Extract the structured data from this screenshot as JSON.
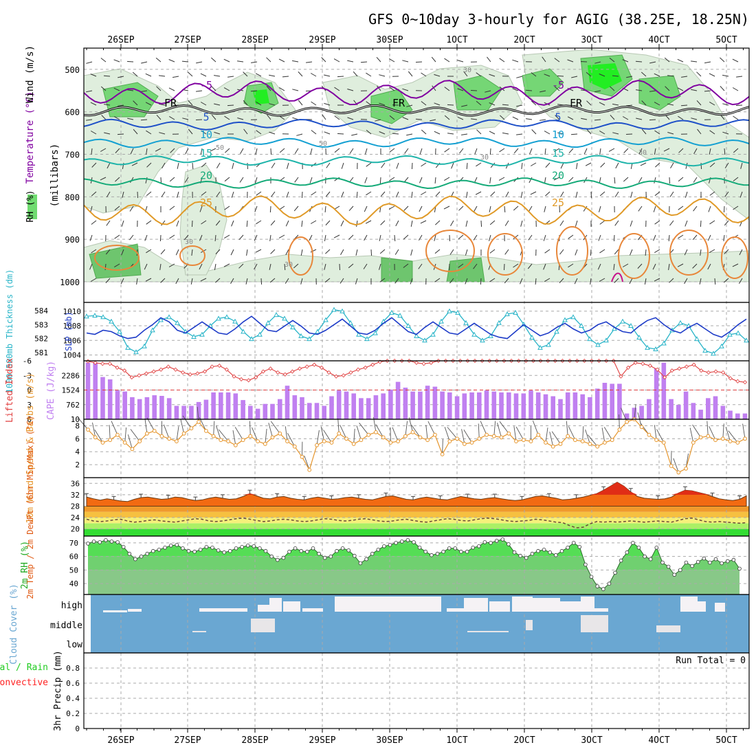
{
  "title": "GFS 0~10day 3-hourly for AGIG (38.25E, 18.25N)",
  "colors": {
    "frame": "#000000",
    "grid": "#aaaaaa",
    "rh_green": "#33cc33",
    "temp_purple": "#8000a0",
    "temp_blue": "#1e50c8",
    "temp_cyan": "#14a0d2",
    "temp_teal": "#1eb4aa",
    "temp_green": "#14aa78",
    "temp_orange": "#e09a28",
    "cape_bar": "#c080f0",
    "lifted_line": "#e03c3c",
    "wind_line": "#e6962d",
    "thick_line": "#1e3cc8",
    "slp_line": "#28b4c8",
    "cloud_blue": "#6aa7d2",
    "cloud_white": "#f5f2f5"
  },
  "chart_data": [
    {
      "panel": "upper_air",
      "type": "contour",
      "title": "",
      "ylabel_parts": [
        "RH (%)",
        "Temperature (°C)",
        "Wind (m/s)"
      ],
      "ylabel_units": "(millibars)",
      "date_labels": [
        "26SEP",
        "27SEP",
        "28SEP",
        "29SEP",
        "30SEP",
        "1OCT",
        "2OCT",
        "3OCT",
        "4OCT",
        "5OCT"
      ],
      "ylim": [
        1000,
        450
      ],
      "yticks": [
        500,
        600,
        700,
        800,
        900,
        1000
      ],
      "temperature_isotherms": [
        {
          "label": "-5",
          "level_mb": 555
        },
        {
          "label": "FR",
          "level_mb": 597
        },
        {
          "label": "5",
          "level_mb": 630
        },
        {
          "label": "10",
          "level_mb": 672
        },
        {
          "label": "15",
          "level_mb": 715
        },
        {
          "label": "20",
          "level_mb": 768
        },
        {
          "label": "25",
          "level_mb": 832
        }
      ],
      "rh_contour_labels": [
        "30",
        "50",
        "70"
      ]
    },
    {
      "panel": "thickness_slp",
      "type": "line",
      "ylabel_left": "1000-500mb Thickness (dm)",
      "ylabel_right": "SLP (mb)",
      "left_ticks": [
        "584",
        "583",
        "582",
        "581"
      ],
      "right_ticks": [
        "1010",
        "1008",
        "1006",
        "1004"
      ],
      "thickness_dm": [
        582.4,
        582.3,
        582.6,
        582.5,
        582.2,
        582.0,
        582.1,
        582.6,
        583.0,
        583.5,
        583.2,
        582.6,
        582.4,
        582.8,
        583.2,
        582.8,
        582.4,
        582.3,
        582.7,
        583.2,
        583.6,
        583.1,
        582.6,
        582.5,
        582.9,
        583.3,
        582.9,
        582.4,
        582.3,
        582.6,
        583.0,
        583.4,
        582.9,
        582.4,
        582.3,
        582.6,
        583.1,
        583.5,
        583.0,
        582.5,
        582.3,
        582.8,
        583.2,
        582.8,
        582.4,
        582.3,
        582.7,
        583.1,
        582.7,
        582.3,
        582.1,
        582.0,
        582.5,
        583.0,
        582.6,
        582.2,
        582.4,
        582.8,
        583.1,
        582.7,
        582.4,
        582.6,
        583.0,
        583.2,
        582.8,
        582.5,
        582.4,
        582.9,
        583.3,
        583.5,
        583.0,
        582.6,
        582.4,
        582.8,
        583.1,
        582.7,
        582.3,
        582.1,
        582.5,
        583.0,
        583.4
      ],
      "slp_mb": [
        1009.3,
        1009.4,
        1009.2,
        1008.6,
        1007.2,
        1005.0,
        1004.4,
        1005.2,
        1007.4,
        1008.8,
        1009.2,
        1008.4,
        1007.2,
        1006.5,
        1006.8,
        1008.0,
        1009.0,
        1009.2,
        1008.6,
        1007.2,
        1006.2,
        1006.8,
        1008.4,
        1009.5,
        1009.0,
        1007.8,
        1006.6,
        1006.2,
        1007.2,
        1008.8,
        1010.2,
        1010.0,
        1008.4,
        1006.8,
        1006.2,
        1007.0,
        1008.6,
        1009.8,
        1009.4,
        1008.0,
        1006.6,
        1006.0,
        1006.8,
        1008.6,
        1010.0,
        1009.8,
        1008.4,
        1006.8,
        1006.0,
        1006.6,
        1008.4,
        1009.6,
        1009.8,
        1008.2,
        1006.4,
        1005.0,
        1005.4,
        1007.2,
        1008.8,
        1009.2,
        1008.0,
        1006.2,
        1005.4,
        1006.0,
        1007.6,
        1008.6,
        1008.0,
        1006.4,
        1005.0,
        1004.8,
        1005.6,
        1007.4,
        1008.4,
        1008.0,
        1006.2,
        1004.6,
        1004.2,
        1005.2,
        1006.8,
        1007.0,
        1006.0
      ],
      "ylim_thickness": [
        580.4,
        584.6
      ],
      "ylim_slp": [
        1003.2,
        1011.2
      ]
    },
    {
      "panel": "stability",
      "type": "bar",
      "ylabel_left": "Lifted Index",
      "ylabel_right": "CAPE (J/kg)",
      "left_ticks": [
        "-6",
        "-3",
        "0",
        "3",
        "6"
      ],
      "right_ticks": [
        "2286",
        "1524",
        "762",
        "10"
      ],
      "cape_jkg": [
        2950,
        2950,
        2200,
        2080,
        1500,
        1450,
        1150,
        1050,
        1150,
        1250,
        1220,
        1100,
        700,
        700,
        700,
        900,
        1020,
        1400,
        1400,
        1400,
        1350,
        1000,
        700,
        550,
        800,
        800,
        1050,
        1750,
        1250,
        1150,
        850,
        850,
        700,
        1200,
        1500,
        1450,
        1350,
        1100,
        1100,
        1250,
        1350,
        1550,
        1950,
        1650,
        1450,
        1450,
        1750,
        1700,
        1450,
        1400,
        1200,
        1350,
        1400,
        1400,
        1500,
        1450,
        1400,
        1400,
        1350,
        1350,
        1500,
        1400,
        1300,
        1200,
        1050,
        1400,
        1400,
        1300,
        1150,
        1600,
        1900,
        1850,
        1850,
        300,
        600,
        700,
        1050,
        2650,
        2950,
        1050,
        750,
        1450,
        850,
        500,
        1100,
        1200,
        700,
        450,
        300,
        300
      ],
      "lifted_index": [
        -5.9,
        -5.6,
        -5.4,
        -5.4,
        -4.6,
        -4.0,
        -2.6,
        -3.0,
        -3.4,
        -3.8,
        -4.2,
        -4.8,
        -4.2,
        -3.6,
        -3.2,
        -3.4,
        -3.8,
        -4.8,
        -5.0,
        -4.2,
        -2.8,
        -2.2,
        -2.0,
        -2.6,
        -3.8,
        -4.4,
        -3.6,
        -3.2,
        -3.8,
        -4.4,
        -4.8,
        -5.2,
        -4.6,
        -3.6,
        -2.8,
        -3.0,
        -3.6,
        -4.2,
        -4.6,
        -5.2,
        -5.8,
        -6.0,
        -6.0,
        -6.0,
        -6.0,
        -5.6,
        -5.4,
        -5.6,
        -6.0,
        -6.0,
        -6.0,
        -6.0,
        -6.0,
        -6.0,
        -6.0,
        -6.0,
        -6.0,
        -6.0,
        -6.0,
        -6.0,
        -6.0,
        -6.0,
        -6.0,
        -6.0,
        -6.0,
        -6.0,
        -6.0,
        -6.0,
        -6.0,
        -6.0,
        -6.0,
        -6.0,
        -6.0,
        -2.8,
        -4.6,
        -5.6,
        -5.4,
        -5.0,
        -4.2,
        -2.6,
        -4.0,
        -4.4,
        -4.8,
        -5.2,
        -4.0,
        -3.6,
        -3.8,
        -3.6,
        -2.4,
        -1.8,
        -1.6
      ],
      "lifted_index_zero_line": 0
    },
    {
      "panel": "wind10m",
      "type": "line",
      "ylabel": "10m Wind Speed & Barbs (m/s)",
      "yticks": [
        2,
        4,
        6,
        8
      ],
      "ylim": [
        0,
        9
      ],
      "wind_speed_ms": [
        7.4,
        6.2,
        5.4,
        5.8,
        6.6,
        5.4,
        4.4,
        5.6,
        6.8,
        7.2,
        6.4,
        6.0,
        5.6,
        6.8,
        7.6,
        8.6,
        7.2,
        6.4,
        5.8,
        5.6,
        5.0,
        5.8,
        6.4,
        5.6,
        5.2,
        6.2,
        6.8,
        5.6,
        4.8,
        3.2,
        1.2,
        5.0,
        5.6,
        5.4,
        6.8,
        6.0,
        5.2,
        5.8,
        6.6,
        7.0,
        6.2,
        5.4,
        5.6,
        6.4,
        7.0,
        6.2,
        5.8,
        6.6,
        3.6,
        5.6,
        6.0,
        5.2,
        5.4,
        6.0,
        6.6,
        6.4,
        6.2,
        6.8,
        5.6,
        5.8,
        5.6,
        6.6,
        5.4,
        4.8,
        5.2,
        6.4,
        5.8,
        5.6,
        5.2,
        4.8,
        5.4,
        5.8,
        7.4,
        8.6,
        9.0,
        7.8,
        6.6,
        5.8,
        5.4,
        1.8,
        0.8,
        1.4,
        5.4,
        6.2,
        6.4,
        5.8,
        6.0,
        5.6,
        5.4,
        6.0
      ]
    },
    {
      "panel": "temperature2m",
      "type": "area",
      "ylabel": "2m Temp / 2m DewPt (6hr Min/Max) (°C)",
      "yticks": [
        20,
        24,
        28,
        32,
        36
      ],
      "ylim": [
        17.5,
        38
      ],
      "temp_c": [
        31.2,
        30.6,
        30.1,
        30.6,
        30.2,
        29.8,
        29.6,
        30.4,
        31.0,
        31.2,
        30.8,
        30.4,
        30.6,
        31.2,
        31.0,
        30.4,
        30.0,
        30.2,
        30.8,
        31.2,
        30.8,
        30.4,
        30.6,
        31.4,
        32.4,
        31.6,
        30.8,
        30.6,
        31.2,
        31.4,
        30.8,
        30.4,
        30.2,
        30.8,
        31.2,
        30.8,
        30.4,
        30.6,
        31.0,
        31.2,
        30.8,
        30.4,
        30.2,
        30.8,
        31.4,
        31.6,
        31.0,
        30.4,
        30.2,
        30.8,
        31.2,
        30.8,
        30.4,
        30.2,
        30.8,
        31.4,
        31.0,
        30.6,
        30.4,
        30.8,
        31.0,
        30.6,
        30.2,
        30.0,
        30.2,
        30.8,
        31.4,
        31.6,
        31.2,
        30.8,
        30.2,
        30.4,
        30.8,
        31.2,
        31.8,
        32.4,
        33.6,
        35.0,
        36.4,
        35.0,
        33.0,
        31.4,
        30.8,
        30.6,
        30.4,
        30.6,
        31.2,
        32.6,
        33.6,
        33.4,
        32.8,
        32.2,
        31.4,
        30.6,
        30.2,
        30.0,
        30.4,
        31.6
      ],
      "dewpoint_c": [
        23.4,
        22.8,
        22.6,
        22.8,
        23.2,
        23.4,
        22.8,
        22.4,
        22.6,
        23.0,
        23.2,
        22.8,
        22.6,
        22.4,
        22.8,
        23.2,
        23.6,
        23.4,
        22.8,
        22.6,
        22.8,
        23.2,
        23.6,
        23.8,
        23.4,
        23.0,
        22.6,
        22.8,
        23.2,
        23.4,
        23.2,
        22.8,
        22.6,
        22.8,
        23.2,
        23.6,
        23.4,
        23.0,
        22.8,
        23.0,
        23.4,
        23.6,
        23.2,
        22.8,
        22.6,
        22.8,
        23.2,
        23.4,
        23.0,
        22.6,
        22.4,
        22.8,
        23.2,
        23.6,
        23.4,
        23.0,
        22.8,
        23.2,
        23.6,
        23.8,
        23.6,
        23.2,
        22.8,
        22.6,
        22.8,
        23.0,
        23.4,
        23.2,
        22.8,
        22.4,
        22.2,
        21.2,
        20.4,
        20.6,
        21.8,
        22.6,
        22.4,
        22.6,
        22.4,
        22.6,
        22.8,
        22.6,
        22.4,
        22.6,
        22.8,
        22.6,
        22.4,
        23.0,
        23.6,
        23.8,
        23.2,
        22.6,
        22.4,
        22.6,
        22.4,
        22.2,
        22.0,
        22.2
      ]
    },
    {
      "panel": "rh2m",
      "type": "area",
      "ylabel": "2m RH (%)",
      "yticks": [
        40,
        50,
        60,
        70
      ],
      "ylim": [
        32,
        75
      ],
      "rh_pct": [
        69.5,
        71.0,
        70.5,
        72.0,
        71.0,
        70.5,
        67.0,
        62.0,
        58.0,
        60.0,
        62.0,
        64.0,
        65.0,
        66.5,
        68.0,
        68.5,
        66.0,
        64.0,
        63.5,
        65.0,
        67.0,
        66.5,
        64.5,
        63.0,
        64.0,
        66.0,
        67.0,
        68.0,
        67.5,
        66.0,
        64.0,
        60.0,
        57.5,
        59.0,
        63.5,
        66.0,
        64.0,
        63.5,
        66.0,
        62.0,
        59.0,
        60.0,
        64.0,
        66.0,
        64.5,
        60.5,
        55.0,
        58.0,
        62.0,
        65.0,
        67.5,
        68.5,
        70.0,
        71.0,
        72.0,
        70.5,
        66.5,
        63.5,
        61.0,
        62.0,
        63.5,
        66.0,
        66.0,
        63.5,
        63.5,
        66.5,
        67.5,
        70.5,
        70.0,
        71.5,
        72.5,
        69.0,
        63.0,
        60.5,
        59.0,
        62.0,
        64.0,
        65.0,
        63.0,
        61.0,
        64.0,
        66.5,
        70.0,
        67.0,
        54.0,
        45.0,
        38.0,
        36.0,
        40.0,
        48.0,
        57.0,
        63.0,
        70.0,
        66.5,
        60.0,
        58.0,
        66.5,
        55.5,
        52.5,
        46.5,
        50.0,
        55.5,
        53.0,
        56.0,
        58.5,
        55.5,
        58.0,
        55.0,
        56.5,
        57.5,
        51.0
      ]
    },
    {
      "panel": "cloud_cover",
      "type": "heatmap",
      "ylabel": "Cloud Cover (%)",
      "row_labels": [
        "high",
        "middle",
        "low"
      ]
    },
    {
      "panel": "precip",
      "type": "bar",
      "ylabel": "3hr Precip (mm)",
      "ylabel_left_parts": [
        "Total / Rain",
        "Convective"
      ],
      "yticks": [
        "0",
        "0.2",
        "0.4",
        "0.6",
        "0.8"
      ],
      "ylim": [
        0,
        1
      ],
      "values": [],
      "run_total_label": "Run Total = 0"
    }
  ]
}
